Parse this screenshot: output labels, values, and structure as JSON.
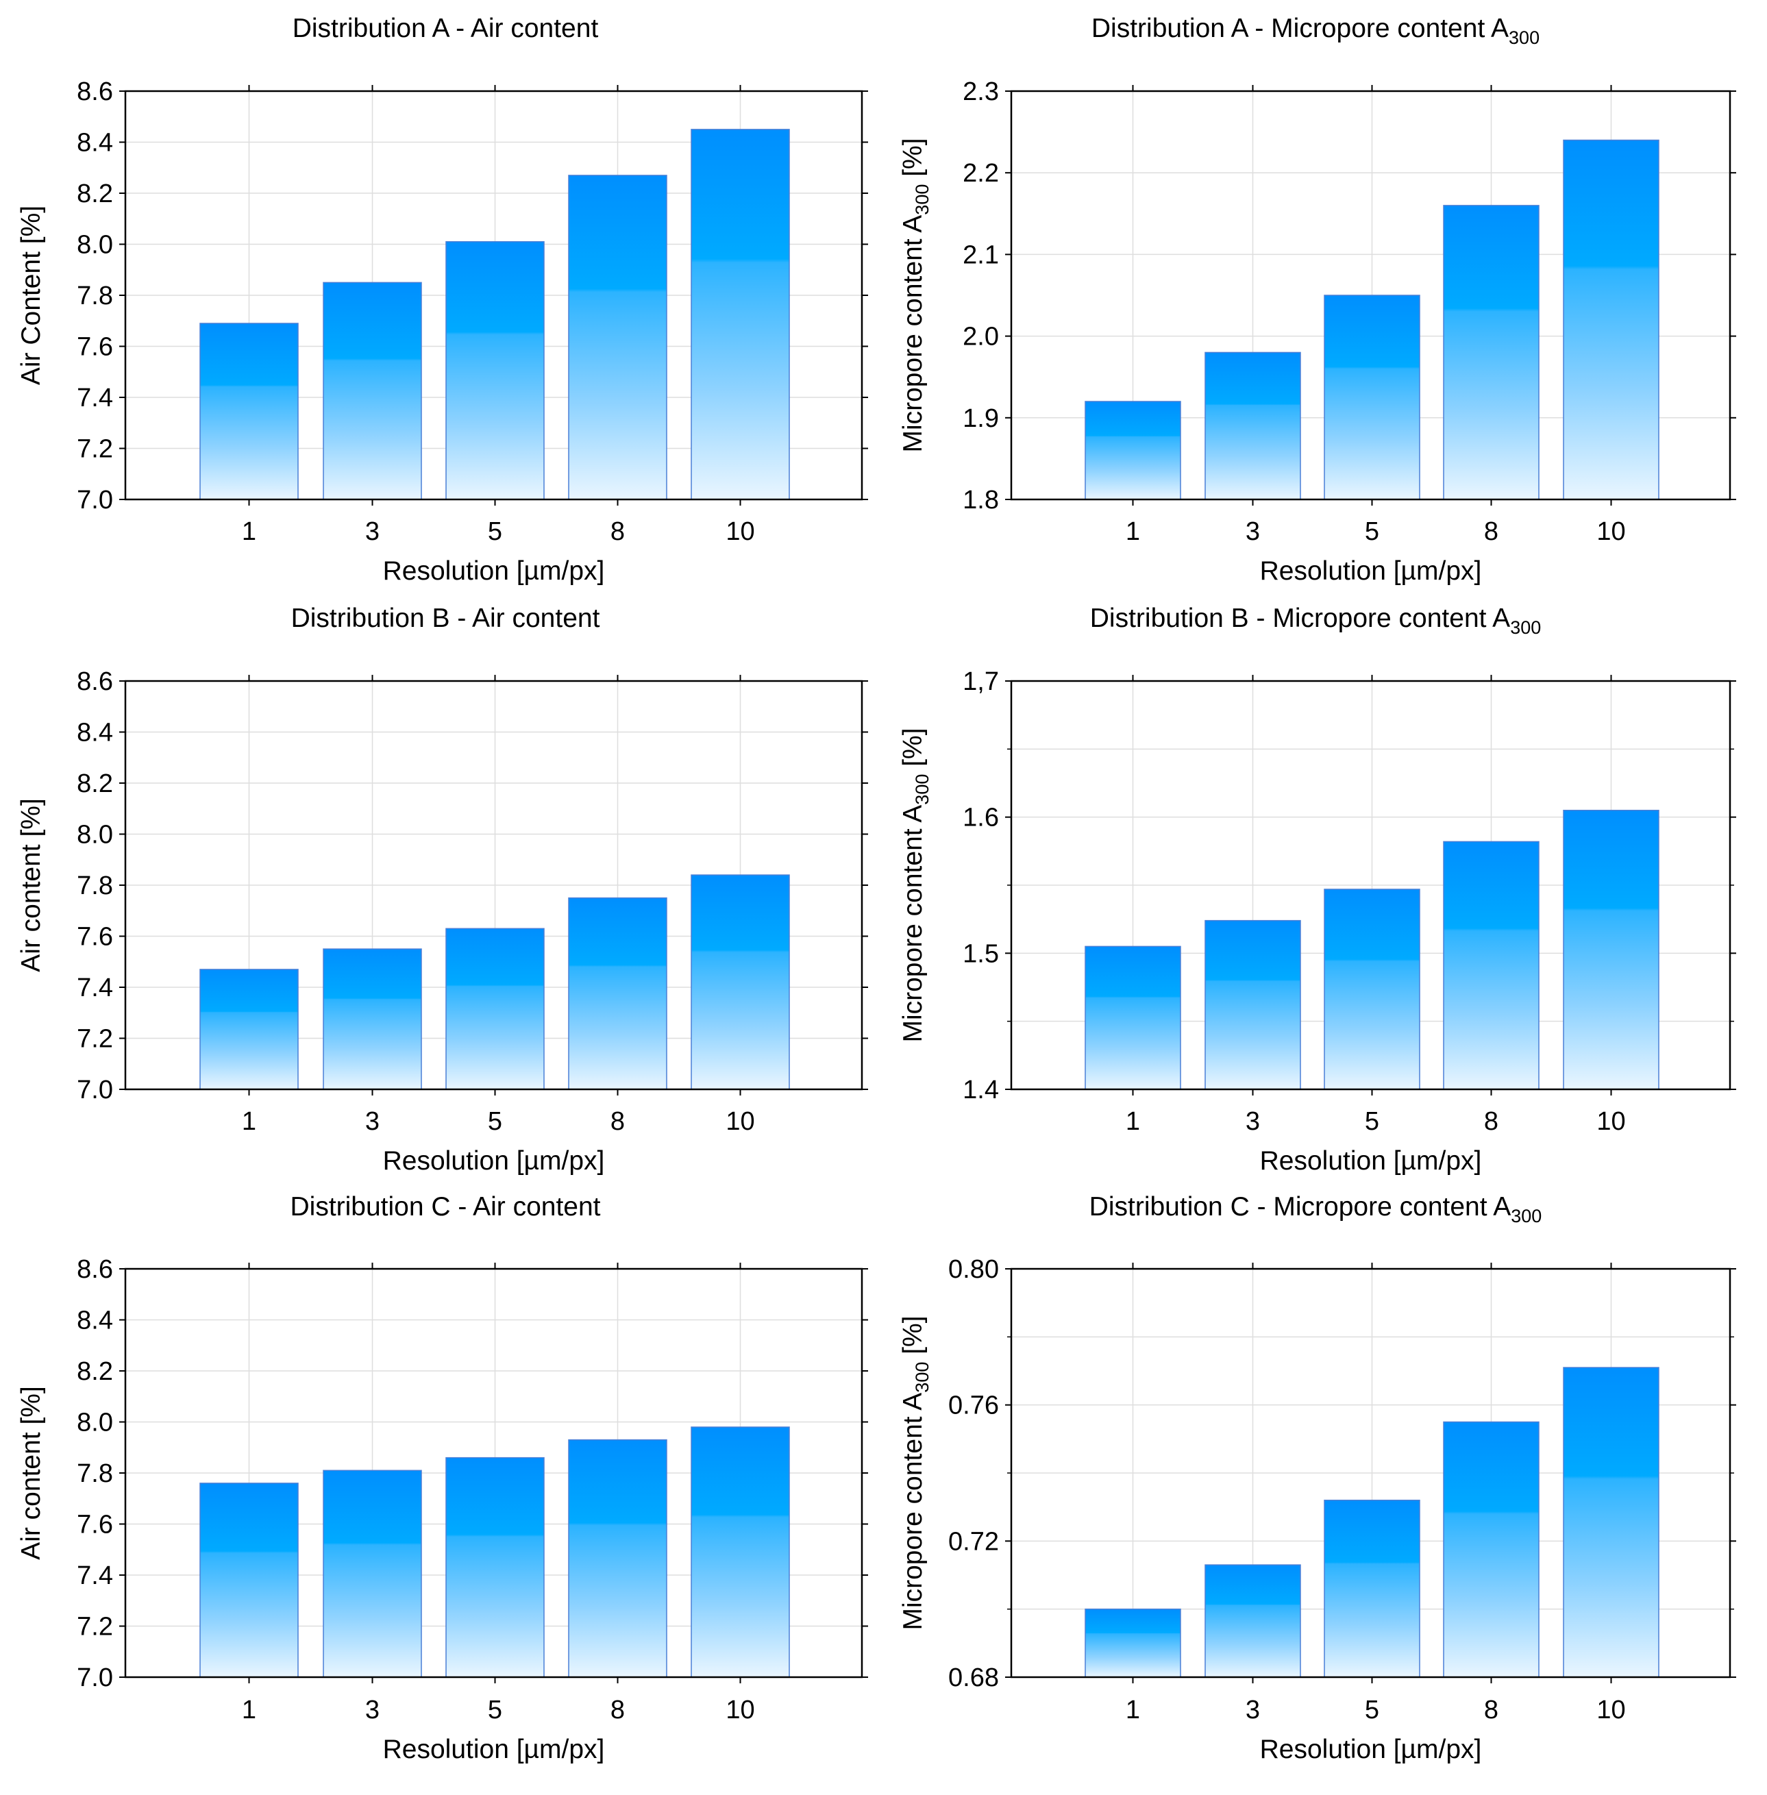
{
  "chart_data": [
    {
      "type": "bar",
      "title": "Distribution A - Air content",
      "title_sub": "",
      "xlabel": "Resolution [µm/px]",
      "ylabel": "Air Content [%]",
      "ylabel_sub": "",
      "ylabel_tail": "",
      "categories": [
        "1",
        "3",
        "5",
        "8",
        "10"
      ],
      "values": [
        7.69,
        7.85,
        8.01,
        8.27,
        8.45
      ],
      "ylim": [
        7.0,
        8.6
      ],
      "yticks": [
        7.0,
        7.2,
        7.4,
        7.6,
        7.8,
        8.0,
        8.2,
        8.4,
        8.6
      ],
      "ytick_labels": [
        "7.0",
        "7.2",
        "7.4",
        "7.6",
        "7.8",
        "8.0",
        "8.2",
        "8.4",
        "8.6"
      ],
      "ygrid_minor": [],
      "grid": true
    },
    {
      "type": "bar",
      "title": "Distribution A - Micropore content A",
      "title_sub": "300",
      "xlabel": "Resolution [µm/px]",
      "ylabel": "Micropore content  A",
      "ylabel_sub": "300",
      "ylabel_tail": " [%]",
      "categories": [
        "1",
        "3",
        "5",
        "8",
        "10"
      ],
      "values": [
        1.92,
        1.98,
        2.05,
        2.16,
        2.24
      ],
      "ylim": [
        1.8,
        2.3
      ],
      "yticks": [
        1.8,
        1.9,
        2.0,
        2.1,
        2.2,
        2.3
      ],
      "ytick_labels": [
        "1.8",
        "1.9",
        "2.0",
        "2.1",
        "2.2",
        "2.3"
      ],
      "ygrid_minor": [],
      "grid": true
    },
    {
      "type": "bar",
      "title": "Distribution B - Air content",
      "title_sub": "",
      "xlabel": "Resolution [µm/px]",
      "ylabel": "Air content [%]",
      "ylabel_sub": "",
      "ylabel_tail": "",
      "categories": [
        "1",
        "3",
        "5",
        "8",
        "10"
      ],
      "values": [
        7.47,
        7.55,
        7.63,
        7.75,
        7.84
      ],
      "ylim": [
        7.0,
        8.6
      ],
      "yticks": [
        7.0,
        7.2,
        7.4,
        7.6,
        7.8,
        8.0,
        8.2,
        8.4,
        8.6
      ],
      "ytick_labels": [
        "7.0",
        "7.2",
        "7.4",
        "7.6",
        "7.8",
        "8.0",
        "8.2",
        "8.4",
        "8.6"
      ],
      "ygrid_minor": [],
      "grid": true
    },
    {
      "type": "bar",
      "title": "Distribution B - Micropore content A",
      "title_sub": "300",
      "xlabel": "Resolution [µm/px]",
      "ylabel": "Micropore content  A",
      "ylabel_sub": "300",
      "ylabel_tail": " [%]",
      "categories": [
        "1",
        "3",
        "5",
        "8",
        "10"
      ],
      "values": [
        1.505,
        1.524,
        1.547,
        1.582,
        1.605
      ],
      "ylim": [
        1.4,
        1.7
      ],
      "yticks": [
        1.4,
        1.5,
        1.6,
        1.7
      ],
      "ytick_labels": [
        "1.4",
        "1.5",
        "1.6",
        "1,7"
      ],
      "ygrid_minor": [
        1.45,
        1.55,
        1.65
      ],
      "grid": true
    },
    {
      "type": "bar",
      "title": "Distribution C - Air content",
      "title_sub": "",
      "xlabel": "Resolution [µm/px]",
      "ylabel": "Air content [%]",
      "ylabel_sub": "",
      "ylabel_tail": "",
      "categories": [
        "1",
        "3",
        "5",
        "8",
        "10"
      ],
      "values": [
        7.76,
        7.81,
        7.86,
        7.93,
        7.98
      ],
      "ylim": [
        7.0,
        8.6
      ],
      "yticks": [
        7.0,
        7.2,
        7.4,
        7.6,
        7.8,
        8.0,
        8.2,
        8.4,
        8.6
      ],
      "ytick_labels": [
        "7.0",
        "7.2",
        "7.4",
        "7.6",
        "7.8",
        "8.0",
        "8.2",
        "8.4",
        "8.6"
      ],
      "ygrid_minor": [],
      "grid": true
    },
    {
      "type": "bar",
      "title": "Distribution C - Micropore content A",
      "title_sub": "300",
      "xlabel": "Resolution [µm/px]",
      "ylabel": "Micropore content  A",
      "ylabel_sub": "300",
      "ylabel_tail": " [%]",
      "categories": [
        "1",
        "3",
        "5",
        "8",
        "10"
      ],
      "values": [
        0.7,
        0.713,
        0.732,
        0.755,
        0.771
      ],
      "ylim": [
        0.68,
        0.8
      ],
      "yticks": [
        0.68,
        0.72,
        0.76,
        0.8
      ],
      "ytick_labels": [
        "0.68",
        "0.72",
        "0.76",
        "0.80"
      ],
      "ygrid_minor": [
        0.7,
        0.74,
        0.78
      ],
      "grid": true
    }
  ],
  "colors": {
    "bar_top": "#008ffe",
    "bar_mid": "#00aaff",
    "bar_light": "#8dd2ff",
    "bar_bottom": "#eaf6ff",
    "bar_edge": "#4a7fd6",
    "grid": "#dedede",
    "axis": "#000000"
  }
}
